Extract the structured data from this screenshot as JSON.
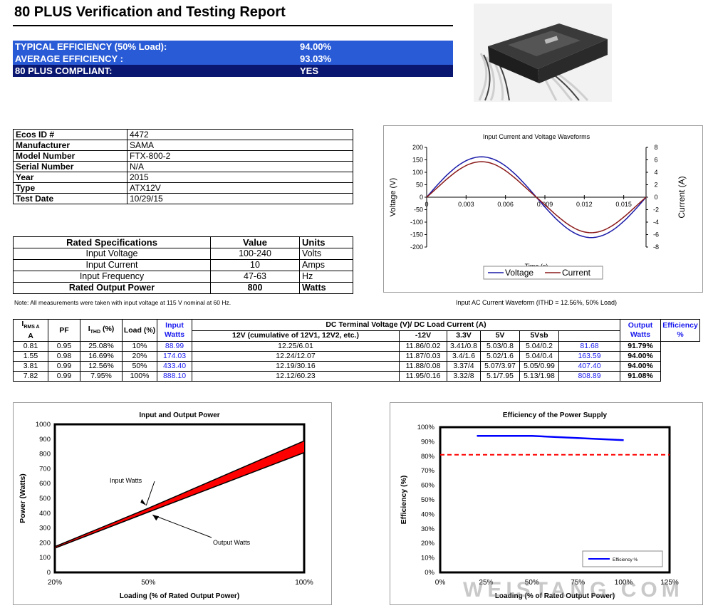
{
  "report": {
    "title": "80 PLUS Verification and Testing Report"
  },
  "summary": [
    {
      "label": "TYPICAL EFFICIENCY (50% Load):",
      "value": "94.00%"
    },
    {
      "label": "AVERAGE EFFICIENCY :",
      "value": "93.03%"
    },
    {
      "label": "80 PLUS COMPLIANT:",
      "value": "YES"
    }
  ],
  "info": [
    {
      "key": "Ecos ID #",
      "value": "4472"
    },
    {
      "key": "Manufacturer",
      "value": "SAMA"
    },
    {
      "key": "Model Number",
      "value": "FTX-800-2"
    },
    {
      "key": "Serial Number",
      "value": "N/A"
    },
    {
      "key": "Year",
      "value": "2015"
    },
    {
      "key": "Type",
      "value": "ATX12V"
    },
    {
      "key": "Test Date",
      "value": "10/29/15"
    }
  ],
  "rated": {
    "headers": [
      "Rated Specifications",
      "Value",
      "Units"
    ],
    "rows": [
      {
        "spec": "Input Voltage",
        "value": "100-240",
        "units": "Volts"
      },
      {
        "spec": "Input Current",
        "value": "10",
        "units": "Amps"
      },
      {
        "spec": "Input Frequency",
        "value": "47-63",
        "units": "Hz"
      },
      {
        "spec": "Rated Output Power",
        "value": "800",
        "units": "Watts"
      }
    ]
  },
  "note": "Note: All measurements were taken with input voltage at 115 V nominal at 60 Hz.",
  "wave_caption": "Input AC Current Waveform (ITHD = 12.56%, 50% Load)",
  "data_table": {
    "h_irms": "I",
    "h_irms_sub": "RMS A",
    "h_irms_a": "A",
    "h_pf": "PF",
    "h_ithd": "I",
    "h_ithd_sub": "THD",
    "h_ithd_unit": " (%)",
    "h_load": "Load (%)",
    "h_input": "Input Watts",
    "h_dc": "DC Terminal Voltage (V)/ DC Load Current (A)",
    "h_12v": "12V (cumulative of 12V1, 12V2, etc.)",
    "h_m12": "-12V",
    "h_33": "3.3V",
    "h_5": "5V",
    "h_5sb": "5Vsb",
    "h_output": "Output Watts",
    "h_eff": "Efficiency %",
    "rows": [
      [
        "0.81",
        "0.95",
        "25.08%",
        "10%",
        "88.99",
        "12.25/6.01",
        "11.86/0.02",
        "3.41/0.8",
        "5.03/0.8",
        "5.04/0.2",
        "81.68",
        "91.79%"
      ],
      [
        "1.55",
        "0.98",
        "16.69%",
        "20%",
        "174.03",
        "12.24/12.07",
        "11.87/0.03",
        "3.4/1.6",
        "5.02/1.6",
        "5.04/0.4",
        "163.59",
        "94.00%"
      ],
      [
        "3.81",
        "0.99",
        "12.56%",
        "50%",
        "433.40",
        "12.19/30.16",
        "11.88/0.08",
        "3.37/4",
        "5.07/3.97",
        "5.05/0.99",
        "407.40",
        "94.00%"
      ],
      [
        "7.82",
        "0.99",
        "7.95%",
        "100%",
        "888.10",
        "12.12/60.23",
        "11.95/0.16",
        "3.32/8",
        "5.1/7.95",
        "5.13/1.98",
        "808.89",
        "91.08%"
      ]
    ]
  },
  "chart_data": [
    {
      "type": "line",
      "title": "Input Current and Voltage Waveforms",
      "xlabel": "Time (s)",
      "ylabel": "Voltage (V)",
      "y2label": "Current (A)",
      "xlim": [
        0,
        0.0167
      ],
      "ylim": [
        -200,
        200
      ],
      "y2lim": [
        -8,
        8
      ],
      "xticks": [
        "0",
        "0.003",
        "0.006",
        "0.009",
        "0.012",
        "0.015"
      ],
      "yticks": [
        "200",
        "150",
        "100",
        "50",
        "0",
        "-50",
        "-100",
        "-150",
        "-200"
      ],
      "y2ticks": [
        "8",
        "6",
        "4",
        "2",
        "0",
        "-2",
        "-4",
        "-6",
        "-8"
      ],
      "series": [
        {
          "name": "Voltage",
          "color": "#1a1aa8",
          "amplitude": 162,
          "axis": "left"
        },
        {
          "name": "Current",
          "color": "#8b1a1a",
          "amplitude": 5.7,
          "axis": "right"
        }
      ],
      "legend": "bottom"
    },
    {
      "type": "area",
      "title": "Input and Output Power",
      "xlabel": "Loading (% of Rated Output Power)",
      "ylabel": "Power (Watts)",
      "xticks": [
        "20%",
        "50%",
        "100%"
      ],
      "yticks": [
        "1000",
        "900",
        "800",
        "700",
        "600",
        "500",
        "400",
        "300",
        "200",
        "100",
        "0"
      ],
      "ylim": [
        0,
        1000
      ],
      "x": [
        20,
        50,
        100
      ],
      "series": [
        {
          "name": "Input Watts",
          "values": [
            174.03,
            433.4,
            888.1
          ]
        },
        {
          "name": "Output Watts",
          "values": [
            163.59,
            407.4,
            808.89
          ]
        }
      ],
      "annotations": [
        "Input Watts",
        "Output Watts"
      ],
      "fill_color": "#ff0000"
    },
    {
      "type": "line",
      "title": "Efficiency of the Power Supply",
      "xlabel": "Loading (% of Rated Output Power)",
      "ylabel": "Efficiency (%)",
      "xticks": [
        "0%",
        "25%",
        "50%",
        "75%",
        "100%",
        "125%"
      ],
      "yticks": [
        "100%",
        "90%",
        "80%",
        "70%",
        "60%",
        "50%",
        "40%",
        "30%",
        "20%",
        "10%",
        "0%"
      ],
      "xlim": [
        0,
        125
      ],
      "ylim": [
        0,
        100
      ],
      "series": [
        {
          "name": "Efficiency %",
          "x": [
            20,
            50,
            100
          ],
          "values": [
            94.0,
            94.0,
            91.08
          ],
          "color": "#0000ff"
        }
      ],
      "threshold": {
        "value": 81,
        "color": "#ff0000"
      },
      "legend": "bottom-right"
    }
  ],
  "watermark": "WEISTANG.COM"
}
